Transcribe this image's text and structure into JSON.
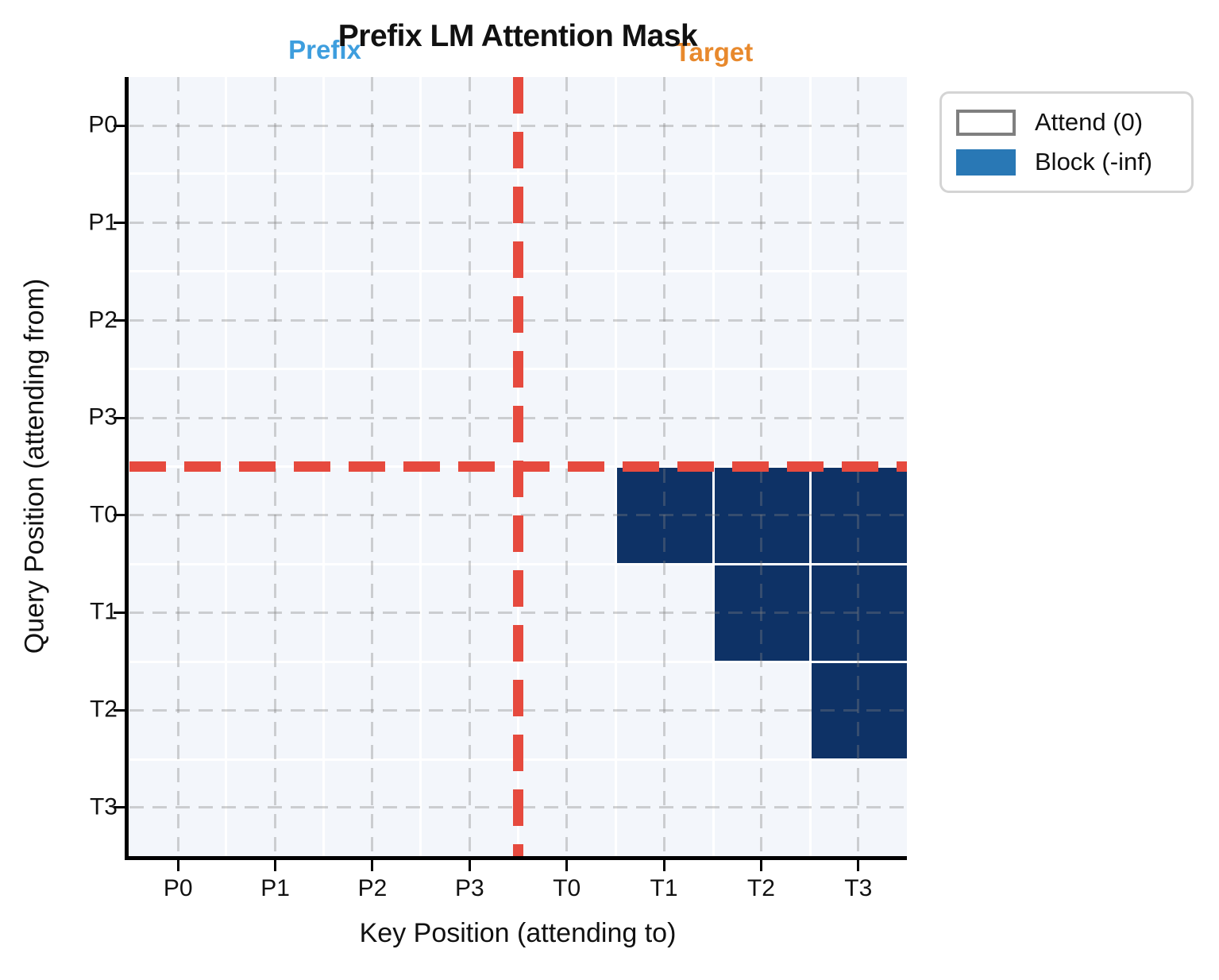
{
  "chart_data": {
    "type": "heatmap",
    "title": "Prefix LM Attention Mask",
    "xlabel": "Key Position (attending to)",
    "ylabel": "Query Position (attending from)",
    "x_ticklabels": [
      "P0",
      "P1",
      "P2",
      "P3",
      "T0",
      "T1",
      "T2",
      "T3"
    ],
    "y_ticklabels": [
      "P0",
      "P1",
      "P2",
      "P3",
      "T0",
      "T1",
      "T2",
      "T3"
    ],
    "mask_encoding": {
      "0": "Attend (0)",
      "1": "Block (-inf)"
    },
    "mask": [
      [
        0,
        0,
        0,
        0,
        0,
        0,
        0,
        0
      ],
      [
        0,
        0,
        0,
        0,
        0,
        0,
        0,
        0
      ],
      [
        0,
        0,
        0,
        0,
        0,
        0,
        0,
        0
      ],
      [
        0,
        0,
        0,
        0,
        0,
        0,
        0,
        0
      ],
      [
        0,
        0,
        0,
        0,
        0,
        1,
        1,
        1
      ],
      [
        0,
        0,
        0,
        0,
        0,
        0,
        1,
        1
      ],
      [
        0,
        0,
        0,
        0,
        0,
        0,
        0,
        1
      ],
      [
        0,
        0,
        0,
        0,
        0,
        0,
        0,
        0
      ]
    ],
    "region_labels": {
      "prefix": {
        "text": "Prefix",
        "color": "#3e9ede"
      },
      "target": {
        "text": "Target",
        "color": "#e8892d"
      }
    },
    "legend": {
      "position": "upper right",
      "entries": [
        {
          "label": "Attend (0)",
          "fill": "#ffffff",
          "border": "#7f7f7f"
        },
        {
          "label": "Block (-inf)",
          "fill": "#2978b5",
          "border": "#2978b5"
        }
      ]
    },
    "divider": {
      "color": "#e64a3e",
      "style": "dashed",
      "vertical_between_keys": [
        "P3",
        "T0"
      ],
      "horizontal_between_queries": [
        "P3",
        "T0"
      ]
    },
    "colors": {
      "attend_cell": "#f3f6fb",
      "block_cell": "#0e3266",
      "grid": "#808080"
    }
  }
}
